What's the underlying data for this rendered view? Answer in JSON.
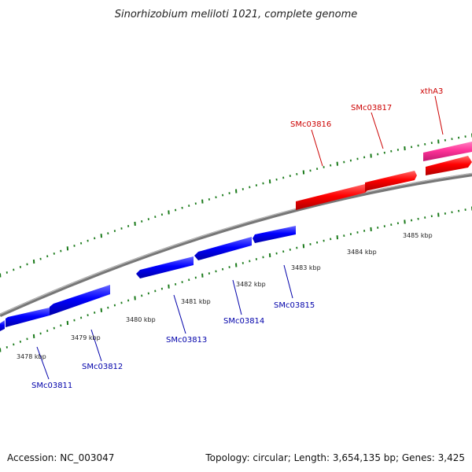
{
  "title": "Sinorhizobium meliloti 1021, complete genome",
  "accession": "Accession: NC_003047",
  "topology": "Topology: circular; Length: 3,654,135 bp; Genes: 3,425",
  "kbp_labels": [
    "3478 kbp",
    "3479 kbp",
    "3480 kbp",
    "3481 kbp",
    "3482 kbp",
    "3483 kbp",
    "3484 kbp",
    "3485 kbp"
  ],
  "genes_forward": [
    "SMc03816",
    "SMc03817",
    "xthA3"
  ],
  "genes_reverse": [
    "SMc03811",
    "SMc03812",
    "SMc03813",
    "SMc03814",
    "SMc03815"
  ],
  "colors": {
    "forward": "#ff0000",
    "reverse": "#0000ff",
    "rna": "#ff3399",
    "ticks": "#1a7a1a",
    "backbone": "#888888",
    "forward_label": "#cc0000",
    "reverse_label": "#0000aa"
  }
}
